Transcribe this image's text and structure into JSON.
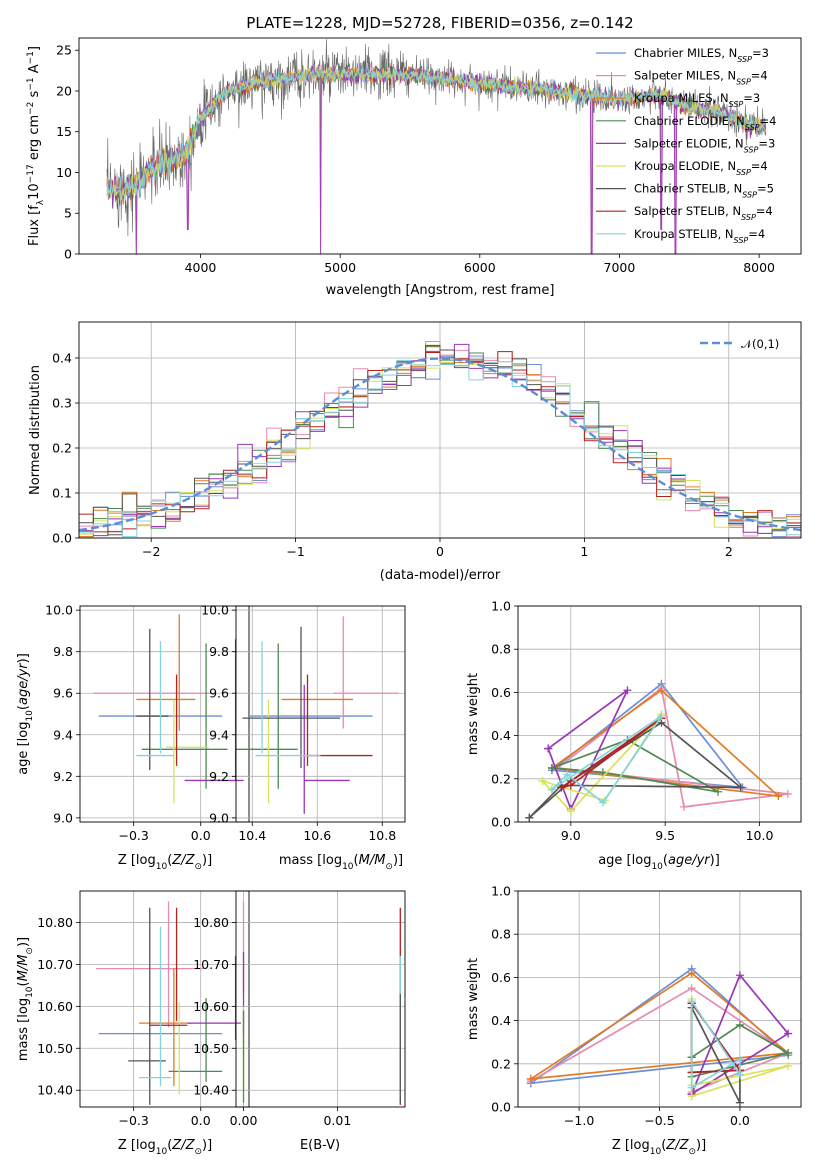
{
  "title": "PLATE=1228, MJD=52728, FIBERID=0356, z=0.142",
  "colors": {
    "Chabrier MILES": "#6a8fd8",
    "Salpeter MILES": "#e78ab0",
    "Kroupa MILES": "#e07b22",
    "Chabrier ELODIE": "#4e8a52",
    "Salpeter ELODIE": "#9a35b8",
    "Kroupa ELODIE": "#d8e25a",
    "Chabrier STELIB": "#555555",
    "Salpeter STELIB": "#b32222",
    "Kroupa STELIB": "#84d4de"
  },
  "legend": [
    {
      "name": "Chabrier MILES",
      "nssp": "3"
    },
    {
      "name": "Salpeter MILES",
      "nssp": "4"
    },
    {
      "name": "Kroupa MILES",
      "nssp": "3"
    },
    {
      "name": "Chabrier ELODIE",
      "nssp": "4"
    },
    {
      "name": "Salpeter ELODIE",
      "nssp": "3"
    },
    {
      "name": "Kroupa ELODIE",
      "nssp": "4"
    },
    {
      "name": "Chabrier STELIB",
      "nssp": "5"
    },
    {
      "name": "Salpeter STELIB",
      "nssp": "4"
    },
    {
      "name": "Kroupa STELIB",
      "nssp": "4"
    }
  ],
  "chart_data": [
    {
      "id": "spectrum",
      "type": "line",
      "xlabel": "wavelength [Angstrom, rest frame]",
      "ylabel": "Flux [f_λ 10^-17 erg cm^-2 s^-1 A^-1]",
      "xlim": [
        3130,
        8300
      ],
      "ylim": [
        0,
        26.5
      ],
      "xticks": [
        4000,
        5000,
        6000,
        7000,
        8000
      ],
      "yticks": [
        0,
        5,
        10,
        15,
        20,
        25
      ],
      "grid": false,
      "legend_position": "top-right",
      "continuum": [
        [
          3330,
          8.0
        ],
        [
          3500,
          8.0
        ],
        [
          3600,
          9.5
        ],
        [
          3700,
          11.0
        ],
        [
          3800,
          11.5
        ],
        [
          3900,
          12.5
        ],
        [
          4000,
          16.5
        ],
        [
          4100,
          18.5
        ],
        [
          4200,
          20.0
        ],
        [
          4400,
          21.0
        ],
        [
          4600,
          21.5
        ],
        [
          4800,
          22.0
        ],
        [
          5000,
          22.0
        ],
        [
          5500,
          22.0
        ],
        [
          6000,
          21.0
        ],
        [
          6500,
          20.0
        ],
        [
          7000,
          19.0
        ],
        [
          7300,
          19.5
        ],
        [
          7500,
          18.0
        ],
        [
          7700,
          17.5
        ],
        [
          7900,
          16.0
        ],
        [
          8050,
          15.5
        ]
      ],
      "dips": [
        [
          3540,
          0
        ],
        [
          3910,
          3
        ],
        [
          4860,
          0
        ],
        [
          6800,
          0
        ],
        [
          7300,
          3
        ],
        [
          7400,
          0
        ]
      ]
    },
    {
      "id": "residuals",
      "type": "bar",
      "xlabel": "(data-model)/error",
      "ylabel": "Normed distribution",
      "xlim": [
        -2.5,
        2.5
      ],
      "ylim": [
        0,
        0.48
      ],
      "xticks": [
        -2,
        -1,
        0,
        1,
        2
      ],
      "yticks": [
        0.0,
        0.1,
        0.2,
        0.3,
        0.4
      ],
      "grid": true,
      "legend_position": "top-right",
      "gaussian_label": "𝒩(0,1)",
      "bin_width": 0.1
    },
    {
      "id": "age-vs-Z",
      "type": "scatter",
      "xlabel": "Z [log10(Z/Z⊙)]",
      "ylabel": "age [log10(age/yr)]",
      "xlim": [
        -0.45,
        0.18
      ],
      "ylim": [
        8.98,
        10.02
      ],
      "xticks": [
        -0.25,
        0.0
      ],
      "yticks": [
        9.0,
        9.2,
        9.4,
        9.6,
        9.8,
        10.0
      ],
      "grid": true,
      "points": [
        {
          "series": "Chabrier MILES",
          "x": -0.15,
          "xerr": 0.23,
          "y": 9.49,
          "yerr": 0.0
        },
        {
          "series": "Salpeter MILES",
          "x": -0.18,
          "xerr": 0.22,
          "y": 9.6,
          "yerr": 0.0
        },
        {
          "series": "Kroupa MILES",
          "x": -0.13,
          "xerr": 0.11,
          "y": 9.57,
          "yerr": 0.0
        },
        {
          "series": "Kroupa MILES",
          "x": -0.08,
          "xerr": 0.0,
          "y": 9.7,
          "yerr": 0.28
        },
        {
          "series": "Chabrier ELODIE",
          "x": 0.02,
          "xerr": 0.0,
          "y": 9.49,
          "yerr": 0.35
        },
        {
          "series": "Chabrier ELODIE",
          "x": -0.06,
          "xerr": 0.16,
          "y": 9.33,
          "yerr": 0.0
        },
        {
          "series": "Salpeter ELODIE",
          "x": 0.13,
          "xerr": 0.0,
          "y": 9.52,
          "yerr": 0.34
        },
        {
          "series": "Salpeter ELODIE",
          "x": 0.05,
          "xerr": 0.11,
          "y": 9.18,
          "yerr": 0.0
        },
        {
          "series": "Kroupa ELODIE",
          "x": -0.1,
          "xerr": 0.0,
          "y": 9.32,
          "yerr": 0.25
        },
        {
          "series": "Kroupa ELODIE",
          "x": -0.05,
          "xerr": 0.08,
          "y": 9.34,
          "yerr": 0.0
        },
        {
          "series": "Chabrier STELIB",
          "x": -0.19,
          "xerr": 0.0,
          "y": 9.57,
          "yerr": 0.34
        },
        {
          "series": "Chabrier STELIB",
          "x": -0.18,
          "xerr": 0.06,
          "y": 9.49,
          "yerr": 0.0
        },
        {
          "series": "Salpeter STELIB",
          "x": -0.09,
          "xerr": 0.0,
          "y": 9.47,
          "yerr": 0.22
        },
        {
          "series": "Kroupa STELIB",
          "x": -0.15,
          "xerr": 0.0,
          "y": 9.58,
          "yerr": 0.27
        },
        {
          "series": "Kroupa STELIB",
          "x": -0.17,
          "xerr": 0.07,
          "y": 9.3,
          "yerr": 0.0
        }
      ]
    },
    {
      "id": "age-vs-mass",
      "type": "scatter",
      "xlabel": "mass [log10(M/M⊙)]",
      "ylabel": "",
      "xlim": [
        10.35,
        10.87
      ],
      "ylim": [
        8.98,
        10.02
      ],
      "xticks": [
        10.4,
        10.6,
        10.8
      ],
      "yticks": [
        9.0,
        9.2,
        9.4,
        9.6,
        9.8,
        10.0
      ],
      "grid": true,
      "points": [
        {
          "series": "Chabrier MILES",
          "x": 10.58,
          "xerr": 0.19,
          "y": 9.49,
          "yerr": 0.0
        },
        {
          "series": "Salpeter MILES",
          "x": 10.75,
          "xerr": 0.1,
          "y": 9.6,
          "yerr": 0.0
        },
        {
          "series": "Salpeter MILES",
          "x": 10.68,
          "xerr": 0.0,
          "y": 9.7,
          "yerr": 0.27
        },
        {
          "series": "Kroupa MILES",
          "x": 10.6,
          "xerr": 0.11,
          "y": 9.57,
          "yerr": 0.0
        },
        {
          "series": "Chabrier ELODIE",
          "x": 10.48,
          "xerr": 0.0,
          "y": 9.49,
          "yerr": 0.35
        },
        {
          "series": "Chabrier ELODIE",
          "x": 10.44,
          "xerr": 0.1,
          "y": 9.33,
          "yerr": 0.0
        },
        {
          "series": "Salpeter ELODIE",
          "x": 10.56,
          "xerr": 0.0,
          "y": 9.33,
          "yerr": 0.31
        },
        {
          "series": "Salpeter ELODIE",
          "x": 10.63,
          "xerr": 0.07,
          "y": 9.18,
          "yerr": 0.0
        },
        {
          "series": "Kroupa ELODIE",
          "x": 10.45,
          "xerr": 0.0,
          "y": 9.32,
          "yerr": 0.25
        },
        {
          "series": "Chabrier STELIB",
          "x": 10.55,
          "xerr": 0.0,
          "y": 9.58,
          "yerr": 0.34
        },
        {
          "series": "Chabrier STELIB",
          "x": 10.52,
          "xerr": 0.15,
          "y": 9.48,
          "yerr": 0.0
        },
        {
          "series": "Salpeter STELIB",
          "x": 10.57,
          "xerr": 0.0,
          "y": 9.47,
          "yerr": 0.22
        },
        {
          "series": "Salpeter STELIB",
          "x": 10.67,
          "xerr": 0.1,
          "y": 9.3,
          "yerr": 0.0
        },
        {
          "series": "Kroupa STELIB",
          "x": 10.43,
          "xerr": 0.0,
          "y": 9.58,
          "yerr": 0.27
        },
        {
          "series": "Kroupa STELIB",
          "x": 10.51,
          "xerr": 0.1,
          "y": 9.3,
          "yerr": 0.0
        }
      ]
    },
    {
      "id": "weight-vs-age",
      "type": "line",
      "xlabel": "age [log10(age/yr)]",
      "ylabel": "mass weight",
      "xlim": [
        8.72,
        10.22
      ],
      "ylim": [
        0,
        1.0
      ],
      "xticks": [
        9.0,
        9.5,
        10.0
      ],
      "yticks": [
        0.0,
        0.2,
        0.4,
        0.6,
        0.8,
        1.0
      ],
      "grid": true,
      "series": [
        {
          "name": "Chabrier MILES",
          "x": [
            8.9,
            9.48,
            9.91,
            8.9
          ],
          "y": [
            0.24,
            0.64,
            0.16,
            0.24
          ]
        },
        {
          "name": "Salpeter MILES",
          "x": [
            8.93,
            9.48,
            9.6,
            10.15,
            8.93
          ],
          "y": [
            0.25,
            0.62,
            0.07,
            0.13,
            0.25
          ]
        },
        {
          "name": "Kroupa MILES",
          "x": [
            8.9,
            9.48,
            10.1,
            8.9
          ],
          "y": [
            0.25,
            0.61,
            0.12,
            0.25
          ]
        },
        {
          "name": "Chabrier ELODIE",
          "x": [
            8.9,
            9.3,
            9.78,
            9.17,
            8.9
          ],
          "y": [
            0.25,
            0.38,
            0.14,
            0.23,
            0.25
          ]
        },
        {
          "name": "Salpeter ELODIE",
          "x": [
            8.88,
            9.0,
            9.3,
            8.88
          ],
          "y": [
            0.34,
            0.06,
            0.61,
            0.34
          ]
        },
        {
          "name": "Kroupa ELODIE",
          "x": [
            8.85,
            9.0,
            9.48,
            9.18,
            8.85
          ],
          "y": [
            0.19,
            0.05,
            0.5,
            0.1,
            0.19
          ]
        },
        {
          "name": "Chabrier STELIB",
          "x": [
            8.78,
            9.0,
            9.48,
            9.9,
            8.95,
            8.78
          ],
          "y": [
            0.02,
            0.19,
            0.46,
            0.16,
            0.17,
            0.02
          ]
        },
        {
          "name": "Salpeter STELIB",
          "x": [
            8.95,
            9.48,
            9.0,
            8.95
          ],
          "y": [
            0.16,
            0.48,
            0.17,
            0.16
          ]
        },
        {
          "name": "Kroupa STELIB",
          "x": [
            8.9,
            9.48,
            9.17,
            8.98,
            8.9
          ],
          "y": [
            0.15,
            0.49,
            0.09,
            0.22,
            0.15
          ]
        }
      ]
    },
    {
      "id": "mass-vs-Z",
      "type": "scatter",
      "xlabel": "Z [log10(Z/Z⊙)]",
      "ylabel": "mass [log10(M/M⊙)]",
      "xlim": [
        -0.45,
        0.18
      ],
      "ylim": [
        10.36,
        10.875
      ],
      "xticks": [
        -0.25,
        0.0
      ],
      "yticks": [
        10.4,
        10.5,
        10.6,
        10.7,
        10.8
      ],
      "grid": true,
      "points": [
        {
          "series": "Chabrier MILES",
          "x": -0.15,
          "xerr": 0.23,
          "y": 10.535,
          "yerr": 0.0
        },
        {
          "series": "Salpeter MILES",
          "x": -0.12,
          "xerr": 0.0,
          "y": 10.7,
          "yerr": 0.15
        },
        {
          "series": "Salpeter MILES",
          "x": -0.19,
          "xerr": 0.2,
          "y": 10.69,
          "yerr": 0.0
        },
        {
          "series": "Kroupa MILES",
          "x": -0.1,
          "xerr": 0.0,
          "y": 10.55,
          "yerr": 0.14
        },
        {
          "series": "Kroupa MILES",
          "x": -0.13,
          "xerr": 0.1,
          "y": 10.56,
          "yerr": 0.0
        },
        {
          "series": "Chabrier ELODIE",
          "x": 0.02,
          "xerr": 0.0,
          "y": 10.52,
          "yerr": 0.1
        },
        {
          "series": "Chabrier ELODIE",
          "x": -0.02,
          "xerr": 0.1,
          "y": 10.445,
          "yerr": 0.0
        },
        {
          "series": "Salpeter ELODIE",
          "x": 0.13,
          "xerr": 0.0,
          "y": 10.62,
          "yerr": 0.1
        },
        {
          "series": "Salpeter ELODIE",
          "x": 0.05,
          "xerr": 0.1,
          "y": 10.56,
          "yerr": 0.0
        },
        {
          "series": "Kroupa ELODIE",
          "x": -0.08,
          "xerr": 0.0,
          "y": 10.5,
          "yerr": 0.11
        },
        {
          "series": "Chabrier STELIB",
          "x": -0.19,
          "xerr": 0.0,
          "y": 10.6,
          "yerr": 0.235
        },
        {
          "series": "Chabrier STELIB",
          "x": -0.2,
          "xerr": 0.07,
          "y": 10.47,
          "yerr": 0.0
        },
        {
          "series": "Salpeter STELIB",
          "x": -0.09,
          "xerr": 0.0,
          "y": 10.7,
          "yerr": 0.135
        },
        {
          "series": "Salpeter STELIB",
          "x": -0.12,
          "xerr": 0.07,
          "y": 10.555,
          "yerr": 0.0
        },
        {
          "series": "Kroupa STELIB",
          "x": -0.15,
          "xerr": 0.0,
          "y": 10.6,
          "yerr": 0.19
        },
        {
          "series": "Kroupa STELIB",
          "x": -0.17,
          "xerr": 0.06,
          "y": 10.43,
          "yerr": 0.0
        }
      ]
    },
    {
      "id": "mass-vs-EBV",
      "type": "scatter",
      "xlabel": "E(B-V)",
      "ylabel": "",
      "xlim": [
        -0.0008,
        0.0172
      ],
      "ylim": [
        10.36,
        10.875
      ],
      "xticks": [
        0.0,
        0.01
      ],
      "yticks": [
        10.4,
        10.5,
        10.6,
        10.7,
        10.8
      ],
      "grid": true,
      "points": [
        {
          "series": "Salpeter MILES",
          "x": 0.0,
          "xerr": 0.0,
          "y": 10.74,
          "yerr": 0.11
        },
        {
          "series": "Salpeter ELODIE",
          "x": 0.0,
          "xerr": 0.0,
          "y": 10.63,
          "yerr": 0.1
        },
        {
          "series": "Kroupa ELODIE",
          "x": 0.0,
          "xerr": 0.0,
          "y": 10.5,
          "yerr": 0.1
        },
        {
          "series": "Chabrier ELODIE",
          "x": 0.0,
          "xerr": 0.0,
          "y": 10.48,
          "yerr": 0.11
        },
        {
          "series": "Salpeter STELIB",
          "x": 0.0167,
          "xerr": 0.0,
          "y": 10.6,
          "yerr": 0.235
        },
        {
          "series": "Kroupa STELIB",
          "x": 0.0167,
          "xerr": 0.0,
          "y": 10.55,
          "yerr": 0.17
        },
        {
          "series": "Chabrier STELIB",
          "x": 0.0167,
          "xerr": 0.0,
          "y": 10.5,
          "yerr": 0.13
        }
      ]
    },
    {
      "id": "weight-vs-Z",
      "type": "line",
      "xlabel": "Z [log10(Z/Z⊙)]",
      "ylabel": "mass weight",
      "xlim": [
        -1.38,
        0.38
      ],
      "ylim": [
        0,
        1.0
      ],
      "xticks": [
        -1.0,
        -0.5,
        0.0
      ],
      "yticks": [
        0.0,
        0.2,
        0.4,
        0.6,
        0.8,
        1.0
      ],
      "grid": true,
      "series": [
        {
          "name": "Chabrier MILES",
          "x": [
            -1.3,
            -0.3,
            0.3,
            -1.3
          ],
          "y": [
            0.11,
            0.64,
            0.24,
            0.11
          ]
        },
        {
          "name": "Salpeter MILES",
          "x": [
            -1.3,
            -0.3,
            0.3,
            -0.3
          ],
          "y": [
            0.12,
            0.55,
            0.25,
            0.07
          ]
        },
        {
          "name": "Kroupa MILES",
          "x": [
            -1.3,
            -0.3,
            0.3,
            -1.3
          ],
          "y": [
            0.13,
            0.62,
            0.25,
            0.13
          ]
        },
        {
          "name": "Chabrier ELODIE",
          "x": [
            -0.3,
            0.0,
            0.3,
            -0.3,
            -0.3
          ],
          "y": [
            0.23,
            0.38,
            0.25,
            0.14,
            0.23
          ]
        },
        {
          "name": "Salpeter ELODIE",
          "x": [
            -0.3,
            0.0,
            0.3,
            -0.3
          ],
          "y": [
            0.06,
            0.61,
            0.34,
            0.06
          ]
        },
        {
          "name": "Kroupa ELODIE",
          "x": [
            -0.3,
            0.3,
            -0.3,
            -0.3
          ],
          "y": [
            0.1,
            0.19,
            0.05,
            0.5
          ]
        },
        {
          "name": "Chabrier STELIB",
          "x": [
            -0.3,
            -0.3,
            0.0,
            0.0,
            -0.3
          ],
          "y": [
            0.46,
            0.16,
            0.17,
            0.02,
            0.46
          ]
        },
        {
          "name": "Salpeter STELIB",
          "x": [
            -0.3,
            -0.3,
            0.0,
            -0.3
          ],
          "y": [
            0.48,
            0.16,
            0.17,
            0.48
          ]
        },
        {
          "name": "Kroupa STELIB",
          "x": [
            -0.3,
            -0.3,
            0.0,
            0.0,
            -0.3
          ],
          "y": [
            0.49,
            0.09,
            0.22,
            0.15,
            0.49
          ]
        }
      ]
    }
  ]
}
